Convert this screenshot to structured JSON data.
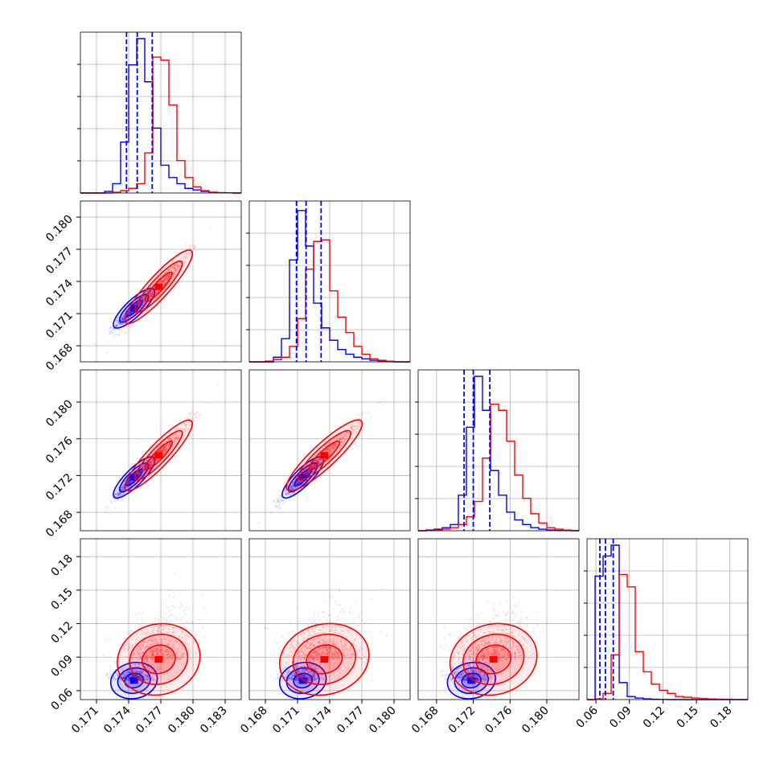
{
  "chart_data": {
    "type": "corner",
    "grid": true,
    "colors": {
      "series_a": "#0000ff",
      "series_b": "#ff0000"
    },
    "dims": [
      {
        "range": [
          0.1695,
          0.1845
        ],
        "ticks": [
          "0.171",
          "0.174",
          "0.177",
          "0.180",
          "0.183"
        ],
        "tick_values": [
          0.171,
          0.174,
          0.177,
          0.18,
          0.183
        ],
        "quantiles_a": [
          0.1738,
          0.1748,
          0.1762
        ]
      },
      {
        "range": [
          0.1665,
          0.1815
        ],
        "ticks": [
          "0.168",
          "0.171",
          "0.174",
          "0.177",
          "0.180"
        ],
        "tick_values": [
          0.168,
          0.171,
          0.174,
          0.177,
          0.18
        ],
        "quantiles_a": [
          0.1709,
          0.1718,
          0.1732
        ]
      },
      {
        "range": [
          0.166,
          0.1835
        ],
        "ticks": [
          "0.168",
          "0.172",
          "0.176",
          "0.180"
        ],
        "tick_values": [
          0.168,
          0.172,
          0.176,
          0.18
        ],
        "quantiles_a": [
          0.171,
          0.172,
          0.1738
        ]
      },
      {
        "range": [
          0.052,
          0.196
        ],
        "ticks": [
          "0.06",
          "0.09",
          "0.12",
          "0.15",
          "0.18"
        ],
        "tick_values": [
          0.06,
          0.09,
          0.12,
          0.15,
          0.18
        ],
        "quantiles_a": [
          0.0635,
          0.0685,
          0.0755
        ]
      }
    ],
    "series": [
      {
        "mean": [
          0.1745,
          0.1715,
          0.1718,
          0.069
        ],
        "std": [
          0.0009,
          0.0009,
          0.0011,
          0.006
        ],
        "corr": 0.95
      },
      {
        "mean": [
          0.1768,
          0.1735,
          0.1742,
          0.088
        ],
        "std": [
          0.0015,
          0.0017,
          0.0019,
          0.012
        ],
        "corr": 0.97
      }
    ],
    "histograms": [
      {
        "edges": [
          0.1695,
          0.17025,
          0.171,
          0.17175,
          0.1725,
          0.17325,
          0.174,
          0.17475,
          0.1755,
          0.17625,
          0.177,
          0.17775,
          0.1785,
          0.17925,
          0.18,
          0.18075,
          0.1815,
          0.18225,
          0.183,
          0.18375,
          0.1845
        ],
        "series_a": [
          0,
          0,
          0,
          0.01,
          0.06,
          0.33,
          0.83,
          1.0,
          0.72,
          0.42,
          0.18,
          0.1,
          0.06,
          0.03,
          0.02,
          0.01,
          0.005,
          0.002,
          0.001,
          0
        ],
        "series_b": [
          0,
          0,
          0,
          0,
          0.005,
          0.015,
          0.03,
          0.06,
          0.26,
          0.88,
          0.86,
          0.57,
          0.21,
          0.1,
          0.04,
          0.015,
          0.005,
          0.002,
          0.001,
          0
        ]
      },
      {
        "edges": [
          0.1665,
          0.16725,
          0.168,
          0.16875,
          0.1695,
          0.17025,
          0.171,
          0.17175,
          0.1725,
          0.17325,
          0.174,
          0.17475,
          0.1755,
          0.17625,
          0.177,
          0.17775,
          0.1785,
          0.17925,
          0.18,
          0.18075,
          0.1815
        ],
        "series_a": [
          0,
          0,
          0,
          0.03,
          0.15,
          0.66,
          0.98,
          0.75,
          0.38,
          0.22,
          0.14,
          0.08,
          0.05,
          0.03,
          0.02,
          0.01,
          0.005,
          0.002,
          0,
          0
        ],
        "series_b": [
          0,
          0,
          0.005,
          0.015,
          0.03,
          0.1,
          0.28,
          0.6,
          0.78,
          0.79,
          0.46,
          0.29,
          0.19,
          0.1,
          0.05,
          0.02,
          0.01,
          0.004,
          0.001,
          0
        ]
      },
      {
        "edges": [
          0.166,
          0.166875,
          0.16775,
          0.168625,
          0.1695,
          0.170375,
          0.17125,
          0.172125,
          0.173,
          0.173875,
          0.17475,
          0.175625,
          0.1765,
          0.177375,
          0.17825,
          0.179125,
          0.18,
          0.180875,
          0.18175,
          0.182625,
          0.1835
        ],
        "series_a": [
          0,
          0.005,
          0.01,
          0.02,
          0.04,
          0.23,
          0.67,
          1.0,
          0.78,
          0.39,
          0.23,
          0.12,
          0.07,
          0.04,
          0.02,
          0.01,
          0.005,
          0.002,
          0.001,
          0
        ],
        "series_b": [
          0,
          0.002,
          0.005,
          0.01,
          0.02,
          0.04,
          0.09,
          0.19,
          0.47,
          0.82,
          0.78,
          0.58,
          0.36,
          0.21,
          0.11,
          0.05,
          0.02,
          0.01,
          0.004,
          0.001
        ]
      },
      {
        "edges": [
          0.052,
          0.0592,
          0.0664,
          0.0736,
          0.0808,
          0.088,
          0.0952,
          0.1024,
          0.1096,
          0.1168,
          0.124,
          0.1312,
          0.1384,
          0.1456,
          0.1528,
          0.16,
          0.1672,
          0.1744,
          0.1816,
          0.1888,
          0.196
        ],
        "series_a": [
          0,
          0.8,
          0.93,
          1.0,
          0.11,
          0.02,
          0.01,
          0.005,
          0.002,
          0.001,
          0,
          0,
          0,
          0,
          0,
          0,
          0,
          0,
          0,
          0
        ],
        "series_b": [
          0,
          0.005,
          0.04,
          0.29,
          0.81,
          0.73,
          0.31,
          0.18,
          0.1,
          0.06,
          0.04,
          0.02,
          0.015,
          0.01,
          0.006,
          0.004,
          0.003,
          0.002,
          0.001,
          0
        ]
      }
    ]
  }
}
